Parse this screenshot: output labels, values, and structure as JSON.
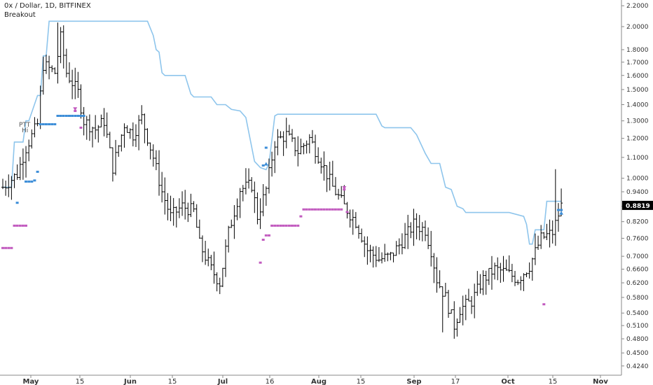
{
  "header": {
    "title": "0x / Dollar, 1D, BITFINEX",
    "indicator": "Breakout"
  },
  "notes": [
    "PTT",
    "Hi"
  ],
  "chart_data": {
    "type": "ohlc",
    "scale": "log",
    "grid": false,
    "ylim": [
      0.417,
      2.23
    ],
    "xlim": [
      "2018-04-26",
      "2018-11-08"
    ],
    "y_ticks": [
      "2.2000",
      "2.0000",
      "1.8000",
      "1.7000",
      "1.6000",
      "1.5000",
      "1.4000",
      "1.3000",
      "1.2000",
      "1.1000",
      "1.0000",
      "0.9400",
      "0.8800",
      "0.8200",
      "0.7600",
      "0.7000",
      "0.6600",
      "0.6200",
      "0.5800",
      "0.5400",
      "0.5100",
      "0.4800",
      "0.4500",
      "0.4240"
    ],
    "x_ticks": [
      {
        "label": "May",
        "bold": true
      },
      {
        "label": "15",
        "bold": false
      },
      {
        "label": "Jun",
        "bold": true
      },
      {
        "label": "15",
        "bold": false
      },
      {
        "label": "Jul",
        "bold": true
      },
      {
        "label": "16",
        "bold": false
      },
      {
        "label": "Aug",
        "bold": true
      },
      {
        "label": "15",
        "bold": false
      },
      {
        "label": "Sep",
        "bold": true
      },
      {
        "label": "17",
        "bold": false
      },
      {
        "label": "Oct",
        "bold": true
      },
      {
        "label": "15",
        "bold": false
      },
      {
        "label": "Nov",
        "bold": true
      }
    ],
    "last_price": "0.8819",
    "colors": {
      "bars": "#000000",
      "breakout_line": "#8ec5ec",
      "buy_marker": "#3d8ed8",
      "sell_marker": "#c25bbf",
      "price_label_bg": "#000000"
    },
    "breakout_line": [
      [
        0,
        0.96
      ],
      [
        3,
        0.96
      ],
      [
        4,
        1.18
      ],
      [
        7,
        1.18
      ],
      [
        8,
        1.3
      ],
      [
        9,
        1.3
      ],
      [
        12,
        1.46
      ],
      [
        13,
        1.46
      ],
      [
        14,
        1.75
      ],
      [
        15,
        1.75
      ],
      [
        16,
        2.05
      ],
      [
        50,
        2.05
      ],
      [
        52,
        1.92
      ],
      [
        53,
        1.8
      ],
      [
        54,
        1.78
      ],
      [
        55,
        1.62
      ],
      [
        56,
        1.6
      ],
      [
        63,
        1.6
      ],
      [
        65,
        1.47
      ],
      [
        66,
        1.45
      ],
      [
        72,
        1.45
      ],
      [
        74,
        1.4
      ],
      [
        77,
        1.4
      ],
      [
        79,
        1.37
      ],
      [
        82,
        1.36
      ],
      [
        84,
        1.32
      ],
      [
        87,
        1.08
      ],
      [
        89,
        1.05
      ],
      [
        91,
        1.04
      ],
      [
        92,
        1.07
      ],
      [
        94,
        1.33
      ],
      [
        95,
        1.34
      ],
      [
        129,
        1.34
      ],
      [
        131,
        1.27
      ],
      [
        132,
        1.26
      ],
      [
        141,
        1.26
      ],
      [
        143,
        1.22
      ],
      [
        146,
        1.12
      ],
      [
        148,
        1.07
      ],
      [
        151,
        1.07
      ],
      [
        153,
        0.96
      ],
      [
        155,
        0.95
      ],
      [
        157,
        0.88
      ],
      [
        159,
        0.87
      ],
      [
        160,
        0.855
      ],
      [
        175,
        0.855
      ],
      [
        180,
        0.84
      ],
      [
        181,
        0.81
      ],
      [
        182,
        0.74
      ],
      [
        183,
        0.74
      ],
      [
        184,
        0.79
      ],
      [
        187,
        0.79
      ],
      [
        188,
        0.9
      ],
      [
        193,
        0.9
      ]
    ],
    "buy_markers": [
      [
        5,
        0.894
      ],
      [
        8,
        0.985
      ],
      [
        9,
        0.985
      ],
      [
        10,
        0.985
      ],
      [
        11,
        0.99
      ],
      [
        12,
        1.03
      ],
      [
        13,
        1.28
      ],
      [
        14,
        1.28
      ],
      [
        15,
        1.28
      ],
      [
        16,
        1.28
      ],
      [
        17,
        1.28
      ],
      [
        18,
        1.28
      ],
      [
        19,
        1.33
      ],
      [
        20,
        1.33
      ],
      [
        21,
        1.33
      ],
      [
        22,
        1.33
      ],
      [
        23,
        1.33
      ],
      [
        24,
        1.33
      ],
      [
        25,
        1.33
      ],
      [
        26,
        1.33
      ],
      [
        27,
        1.33
      ],
      [
        28,
        1.33
      ],
      [
        90,
        1.06
      ],
      [
        91,
        1.15
      ],
      [
        192,
        0.865
      ],
      [
        193,
        0.865
      ]
    ],
    "sell_markers": [
      [
        0,
        0.727
      ],
      [
        1,
        0.727
      ],
      [
        2,
        0.727
      ],
      [
        3,
        0.727
      ],
      [
        4,
        0.805
      ],
      [
        5,
        0.805
      ],
      [
        6,
        0.805
      ],
      [
        7,
        0.805
      ],
      [
        8,
        0.805
      ],
      [
        25,
        1.36
      ],
      [
        27,
        1.26
      ],
      [
        89,
        0.68
      ],
      [
        90,
        0.755
      ],
      [
        91,
        0.77
      ],
      [
        92,
        0.77
      ],
      [
        93,
        0.805
      ],
      [
        94,
        0.805
      ],
      [
        95,
        0.805
      ],
      [
        96,
        0.805
      ],
      [
        97,
        0.805
      ],
      [
        98,
        0.805
      ],
      [
        99,
        0.805
      ],
      [
        100,
        0.805
      ],
      [
        101,
        0.805
      ],
      [
        102,
        0.805
      ],
      [
        103,
        0.84
      ],
      [
        104,
        0.867
      ],
      [
        105,
        0.867
      ],
      [
        106,
        0.867
      ],
      [
        107,
        0.867
      ],
      [
        108,
        0.867
      ],
      [
        109,
        0.867
      ],
      [
        110,
        0.867
      ],
      [
        111,
        0.867
      ],
      [
        112,
        0.867
      ],
      [
        113,
        0.867
      ],
      [
        114,
        0.867
      ],
      [
        115,
        0.867
      ],
      [
        116,
        0.867
      ],
      [
        117,
        0.867
      ],
      [
        118,
        0.95
      ],
      [
        119,
        0.857
      ],
      [
        187,
        0.562
      ]
    ],
    "ohlc_anchors": [
      [
        0,
        0.96
      ],
      [
        5,
        1.02
      ],
      [
        8,
        1.15
      ],
      [
        12,
        1.28
      ],
      [
        14,
        1.68
      ],
      [
        18,
        1.62
      ],
      [
        20,
        1.9
      ],
      [
        22,
        1.62
      ],
      [
        26,
        1.48
      ],
      [
        28,
        1.3
      ],
      [
        32,
        1.25
      ],
      [
        35,
        1.3
      ],
      [
        38,
        1.05
      ],
      [
        42,
        1.28
      ],
      [
        45,
        1.22
      ],
      [
        48,
        1.32
      ],
      [
        52,
        1.1
      ],
      [
        55,
        0.94
      ],
      [
        58,
        0.84
      ],
      [
        62,
        0.88
      ],
      [
        66,
        0.86
      ],
      [
        68,
        0.74
      ],
      [
        72,
        0.66
      ],
      [
        75,
        0.62
      ],
      [
        78,
        0.78
      ],
      [
        82,
        0.95
      ],
      [
        86,
        0.97
      ],
      [
        88,
        0.84
      ],
      [
        91,
        0.95
      ],
      [
        94,
        1.18
      ],
      [
        98,
        1.22
      ],
      [
        102,
        1.13
      ],
      [
        106,
        1.2
      ],
      [
        110,
        1.08
      ],
      [
        114,
        0.96
      ],
      [
        118,
        0.88
      ],
      [
        122,
        0.82
      ],
      [
        126,
        0.72
      ],
      [
        130,
        0.69
      ],
      [
        134,
        0.7
      ],
      [
        138,
        0.75
      ],
      [
        142,
        0.81
      ],
      [
        146,
        0.79
      ],
      [
        148,
        0.72
      ],
      [
        150,
        0.63
      ],
      [
        153,
        0.58
      ],
      [
        156,
        0.51
      ],
      [
        158,
        0.55
      ],
      [
        162,
        0.57
      ],
      [
        166,
        0.63
      ],
      [
        170,
        0.66
      ],
      [
        174,
        0.65
      ],
      [
        178,
        0.63
      ],
      [
        182,
        0.67
      ],
      [
        186,
        0.76
      ],
      [
        190,
        0.78
      ],
      [
        193,
        0.882
      ]
    ]
  }
}
